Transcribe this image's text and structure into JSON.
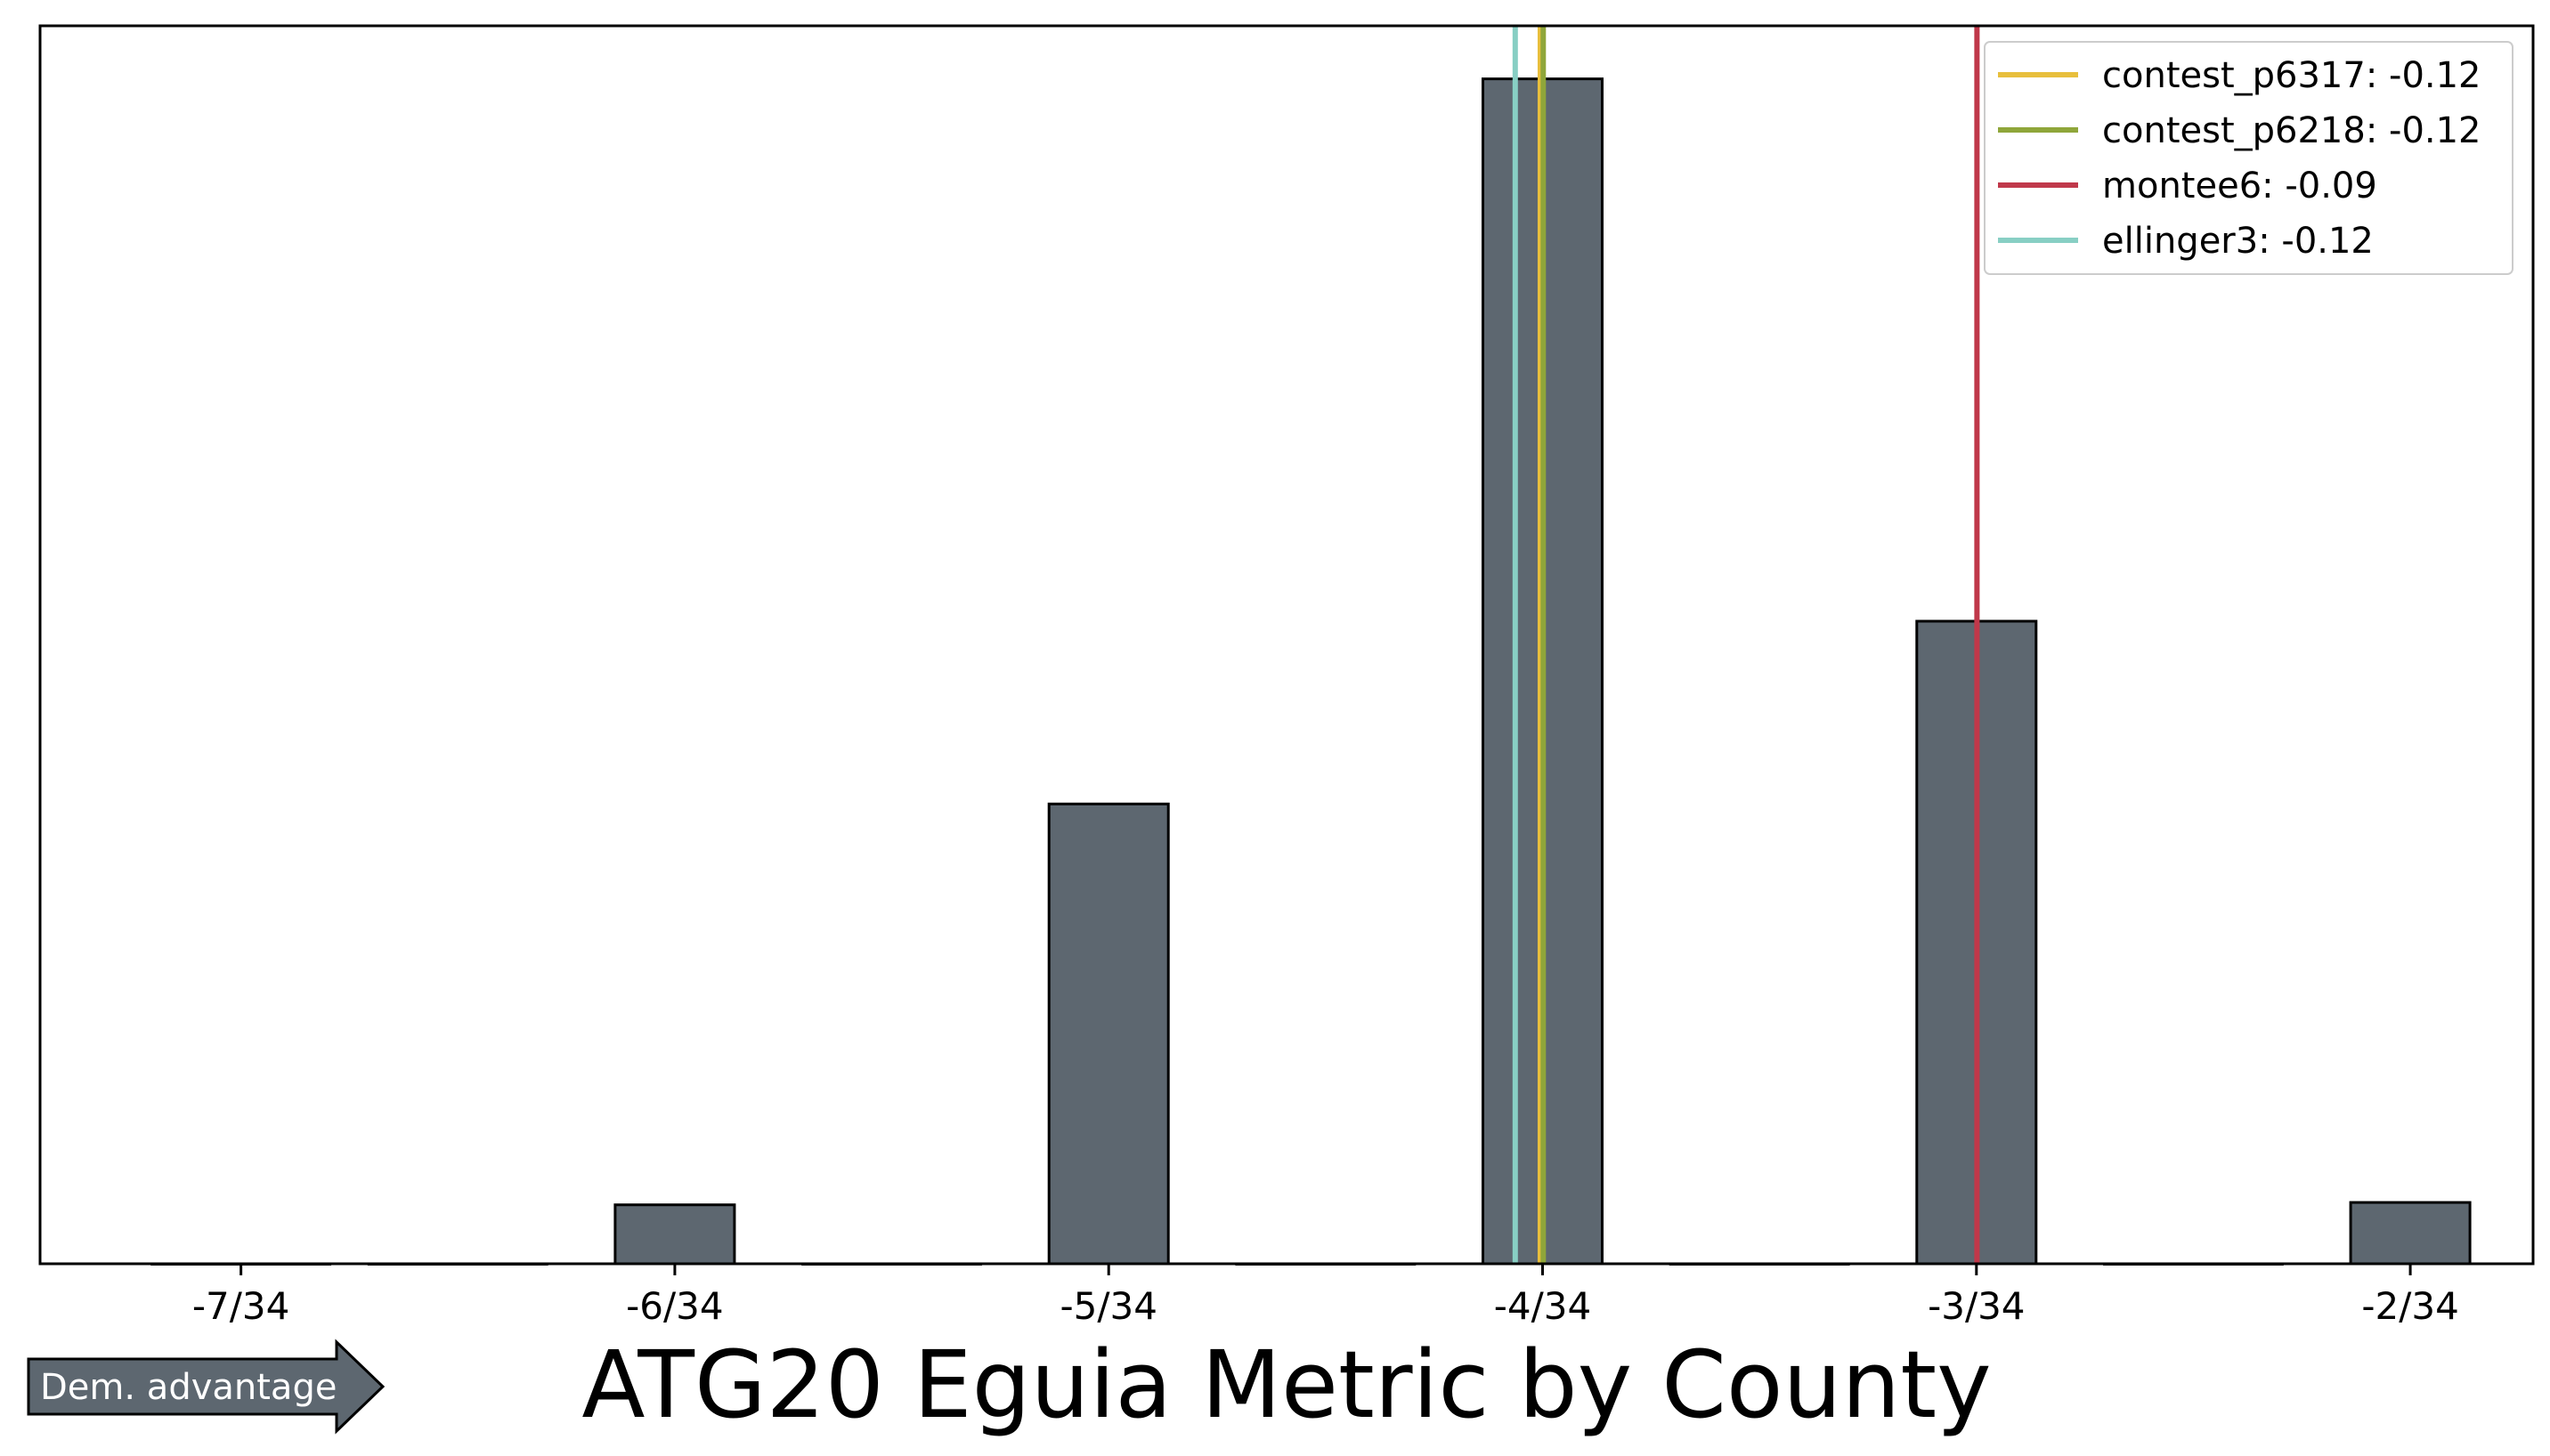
{
  "chart_data": {
    "type": "bar",
    "title": "ATG20 Eguia Metric by County",
    "xlabel": "",
    "ylabel": "",
    "xlim": [
      -0.2195,
      -0.0505
    ],
    "ylim": [
      0,
      1050
    ],
    "x_ticks": [
      {
        "value": -0.205882,
        "label": "-7/34"
      },
      {
        "value": -0.176471,
        "label": "-6/34"
      },
      {
        "value": -0.147059,
        "label": "-5/34"
      },
      {
        "value": -0.117647,
        "label": "-4/34"
      },
      {
        "value": -0.088235,
        "label": "-3/34"
      },
      {
        "value": -0.058824,
        "label": "-2/34"
      }
    ],
    "bins": [
      {
        "center": -0.205882,
        "value": 0
      },
      {
        "center": -0.191176,
        "value": 0
      },
      {
        "center": -0.176471,
        "value": 50
      },
      {
        "center": -0.161765,
        "value": 0
      },
      {
        "center": -0.147059,
        "value": 390
      },
      {
        "center": -0.132353,
        "value": 0
      },
      {
        "center": -0.117647,
        "value": 1005
      },
      {
        "center": -0.102941,
        "value": 0
      },
      {
        "center": -0.088235,
        "value": 545
      },
      {
        "center": -0.073529,
        "value": 0
      },
      {
        "center": -0.058824,
        "value": 52
      }
    ],
    "bar_color": "#5d6770",
    "reference_lines": [
      {
        "name": "contest_p6317: -0.12",
        "value": -0.1178,
        "color": "#e8bf3c"
      },
      {
        "name": "contest_p6218: -0.12",
        "value": -0.1176,
        "color": "#8fa63a"
      },
      {
        "name": "montee6: -0.09",
        "value": -0.0882,
        "color": "#c0384a"
      },
      {
        "name": "ellinger3: -0.12",
        "value": -0.1195,
        "color": "#88cfc4"
      }
    ],
    "legend_position": "top-right",
    "grid": false
  },
  "annotation": {
    "arrow_label": "Dem. advantage",
    "arrow_color": "#5d6770"
  }
}
